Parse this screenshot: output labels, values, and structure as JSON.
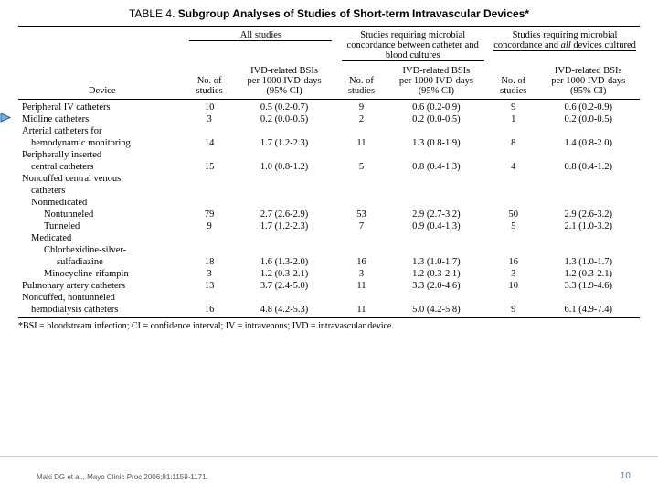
{
  "table": {
    "label": "TABLE 4.",
    "title": "Subgroup Analyses of Studies of Short-term Intravascular Devices*",
    "group_headers": [
      "All studies",
      "Studies requiring microbial concordance between catheter and blood cultures",
      "Studies requiring microbial concordance and all devices cultured"
    ],
    "group_header_italic_word": "all",
    "col_device": "Device",
    "col_n": "No. of studies",
    "col_rate_l1": "IVD-related BSIs",
    "col_rate_l2": "per 1000 IVD-days",
    "col_rate_l3": "(95% CI)"
  },
  "rows": [
    {
      "dev": "Peripheral IV catheters",
      "ind": 0,
      "n1": "10",
      "r1": "0.5 (0.2-0.7)",
      "n2": "9",
      "r2": "0.6 (0.2-0.9)",
      "n3": "9",
      "r3": "0.6 (0.2-0.9)"
    },
    {
      "dev": "Midline catheters",
      "ind": 0,
      "n1": "3",
      "r1": "0.2 (0.0-0.5)",
      "n2": "2",
      "r2": "0.2 (0.0-0.5)",
      "n3": "1",
      "r3": "0.2 (0.0-0.5)"
    },
    {
      "dev": "Arterial catheters for",
      "ind": 0
    },
    {
      "dev": "hemodynamic monitoring",
      "ind": 1,
      "n1": "14",
      "r1": "1.7 (1.2-2.3)",
      "n2": "11",
      "r2": "1.3 (0.8-1.9)",
      "n3": "8",
      "r3": "1.4 (0.8-2.0)"
    },
    {
      "dev": "Peripherally inserted",
      "ind": 0
    },
    {
      "dev": "central catheters",
      "ind": 1,
      "n1": "15",
      "r1": "1.0 (0.8-1.2)",
      "n2": "5",
      "r2": "0.8 (0.4-1.3)",
      "n3": "4",
      "r3": "0.8 (0.4-1.2)"
    },
    {
      "dev": "Noncuffed central venous",
      "ind": 0
    },
    {
      "dev": "catheters",
      "ind": 1
    },
    {
      "dev": "Nonmedicated",
      "ind": 1
    },
    {
      "dev": "Nontunneled",
      "ind": 2,
      "n1": "79",
      "r1": "2.7 (2.6-2.9)",
      "n2": "53",
      "r2": "2.9 (2.7-3.2)",
      "n3": "50",
      "r3": "2.9 (2.6-3.2)"
    },
    {
      "dev": "Tunneled",
      "ind": 2,
      "n1": "9",
      "r1": "1.7 (1.2-2.3)",
      "n2": "7",
      "r2": "0.9 (0.4-1.3)",
      "n3": "5",
      "r3": "2.1 (1.0-3.2)"
    },
    {
      "dev": "Medicated",
      "ind": 1
    },
    {
      "dev": "Chlorhexidine-silver-",
      "ind": 2
    },
    {
      "dev": "sulfadiazine",
      "ind": 3,
      "n1": "18",
      "r1": "1.6 (1.3-2.0)",
      "n2": "16",
      "r2": "1.3 (1.0-1.7)",
      "n3": "16",
      "r3": "1.3 (1.0-1.7)"
    },
    {
      "dev": "Minocycline-rifampin",
      "ind": 2,
      "n1": "3",
      "r1": "1.2 (0.3-2.1)",
      "n2": "3",
      "r2": "1.2 (0.3-2.1)",
      "n3": "3",
      "r3": "1.2 (0.3-2.1)"
    },
    {
      "dev": "Pulmonary artery catheters",
      "ind": 0,
      "n1": "13",
      "r1": "3.7 (2.4-5.0)",
      "n2": "11",
      "r2": "3.3 (2.0-4.6)",
      "n3": "10",
      "r3": "3.3 (1.9-4.6)"
    },
    {
      "dev": "Noncuffed, nontunneled",
      "ind": 0
    },
    {
      "dev": "hemodialysis catheters",
      "ind": 1,
      "n1": "16",
      "r1": "4.8 (4.2-5.3)",
      "n2": "11",
      "r2": "5.0 (4.2-5.8)",
      "n3": "9",
      "r3": "6.1 (4.9-7.4)"
    }
  ],
  "footnote": "*BSI = bloodstream infection; CI = confidence interval; IV = intravenous; IVD = intravascular device.",
  "citation": "Maki DG et al., Mayo Clinic Proc 2006;81:1159-1171.",
  "slide_number": "10",
  "colors": {
    "marker_fill": "#6db4e0",
    "marker_edge": "#2a5a8a",
    "slidenum": "#4a7db3"
  }
}
